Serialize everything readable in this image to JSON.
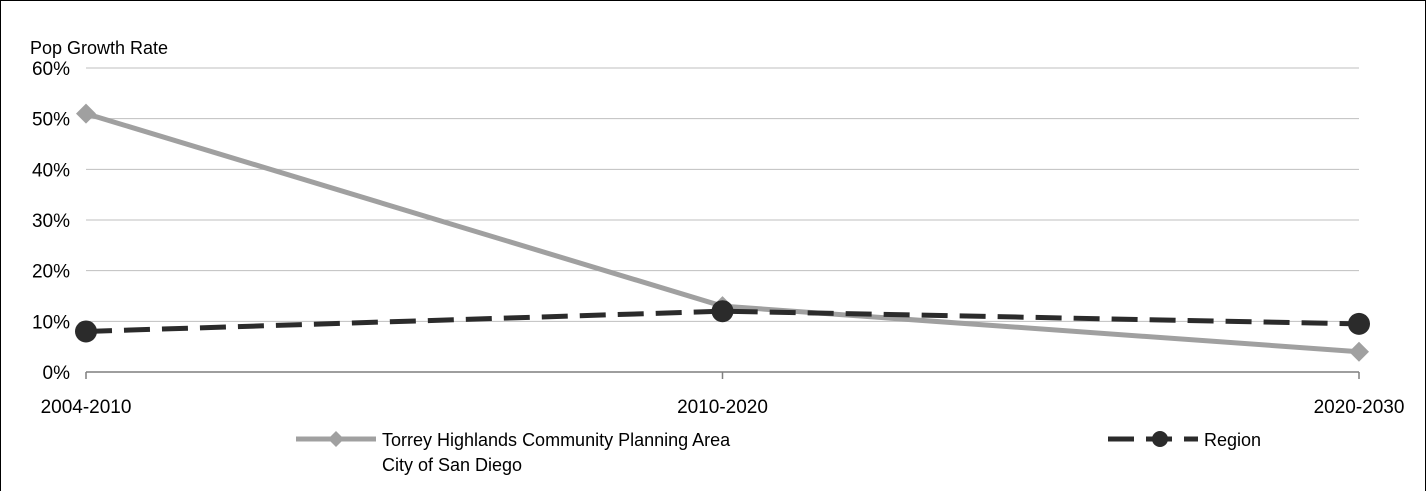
{
  "chart_data": {
    "type": "line",
    "title": "",
    "ylabel": "Pop Growth Rate",
    "xlabel": "",
    "categories": [
      "2004-2010",
      "2010-2020",
      "2020-2030"
    ],
    "y_ticks": [
      "0%",
      "10%",
      "20%",
      "30%",
      "40%",
      "50%",
      "60%"
    ],
    "ylim": [
      0,
      60
    ],
    "grid": true,
    "legend_position": "bottom",
    "series": [
      {
        "name": "Torrey Highlands Community Planning Area",
        "name_line2": "City of San Diego",
        "values": [
          51,
          13,
          4
        ],
        "color": "#a0a0a0",
        "marker": "diamond",
        "line_style": "solid"
      },
      {
        "name": "Region",
        "values": [
          8,
          12,
          9.5
        ],
        "color": "#2b2b2b",
        "marker": "circle",
        "line_style": "dashed"
      }
    ]
  }
}
